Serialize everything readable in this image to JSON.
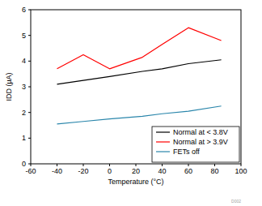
{
  "chart_data": {
    "type": "line",
    "x_label": "Temperature (°C)",
    "y_label": "IDD (µA)",
    "annotations": [
      "D002"
    ],
    "x": [
      -40,
      -20,
      0,
      25,
      40,
      60,
      85
    ],
    "series": [
      {
        "name": "Normal at < 3.8V",
        "color": "#000000",
        "values": [
          3.1,
          3.25,
          3.4,
          3.6,
          3.7,
          3.9,
          4.05
        ]
      },
      {
        "name": "Normal at > 3.9V",
        "color": "#ff0000",
        "values": [
          3.7,
          4.25,
          3.7,
          4.15,
          4.65,
          5.3,
          4.8
        ]
      },
      {
        "name": "FETs off",
        "color": "#2a86ab",
        "values": [
          1.55,
          1.65,
          1.75,
          1.85,
          1.95,
          2.05,
          2.25
        ]
      }
    ],
    "xlim": [
      -60,
      100
    ],
    "xticks": [
      -60,
      -40,
      -20,
      0,
      20,
      40,
      60,
      80,
      100
    ],
    "ylim": [
      0,
      6
    ],
    "yticks": [
      0,
      1,
      2,
      3,
      4,
      5,
      6
    ],
    "grid": false,
    "legend": "lower right"
  }
}
